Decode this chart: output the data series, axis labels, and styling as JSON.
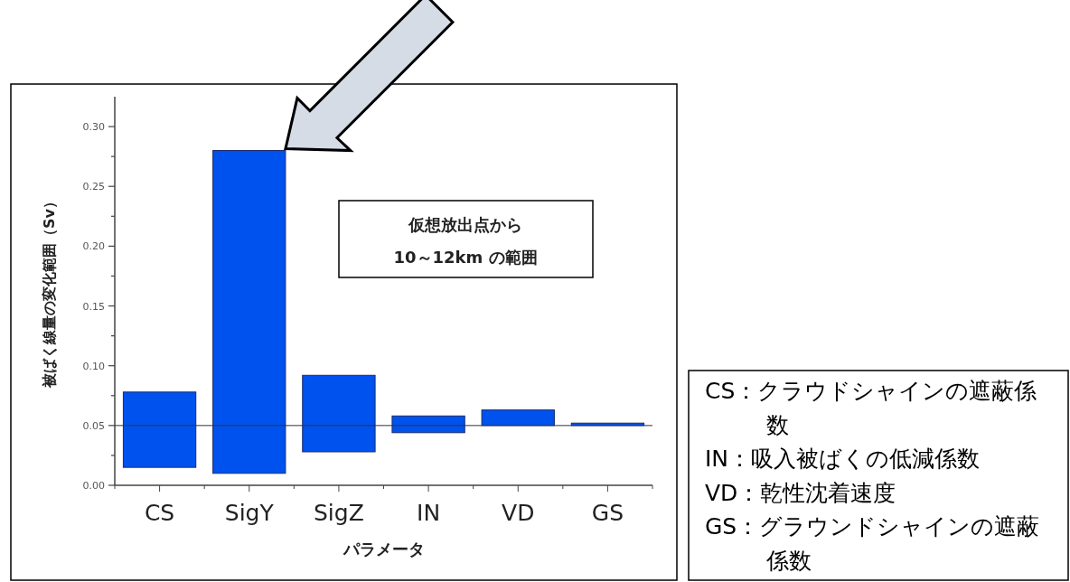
{
  "chart_data": {
    "type": "bar",
    "ylabel": "被ばく線量の変化範囲（Sv）",
    "xlabel": "パラメータ",
    "categories": [
      "CS",
      "SigY",
      "SigZ",
      "IN",
      "VD",
      "GS"
    ],
    "values": [
      0.063,
      0.27,
      0.064,
      0.014,
      0.013,
      0.002
    ],
    "base": [
      0.015,
      0.01,
      0.028,
      0.044,
      0.05,
      0.05
    ],
    "color": "#0052ee",
    "ylim": [
      0,
      0.325
    ],
    "yticks": [
      {
        "value": 0,
        "label": "0.00"
      },
      {
        "value": 0.025,
        "label": null
      },
      {
        "value": 0.05,
        "label": "0.05"
      },
      {
        "value": 0.075,
        "label": null
      },
      {
        "value": 0.1,
        "label": "0.10"
      },
      {
        "value": 0.125,
        "label": null
      },
      {
        "value": 0.15,
        "label": "0.15"
      },
      {
        "value": 0.175,
        "label": null
      },
      {
        "value": 0.2,
        "label": "0.20"
      },
      {
        "value": 0.225,
        "label": null
      },
      {
        "value": 0.25,
        "label": "0.25"
      },
      {
        "value": 0.275,
        "label": null
      },
      {
        "value": 0.3,
        "label": "0.30"
      }
    ],
    "ref_lines": [
      {
        "axis": "y",
        "value": 0.05,
        "color": "#333333"
      }
    ],
    "grid": false,
    "annotations": [
      "仮想放出点から\n10～12km の範囲",
      "CS：クラウドシャインの遮蔽係数",
      "IN：吸入被ばくの低減係数",
      "VD：乾性沈着速度",
      "GS：グラウンドシャインの遮蔽係数"
    ]
  }
}
